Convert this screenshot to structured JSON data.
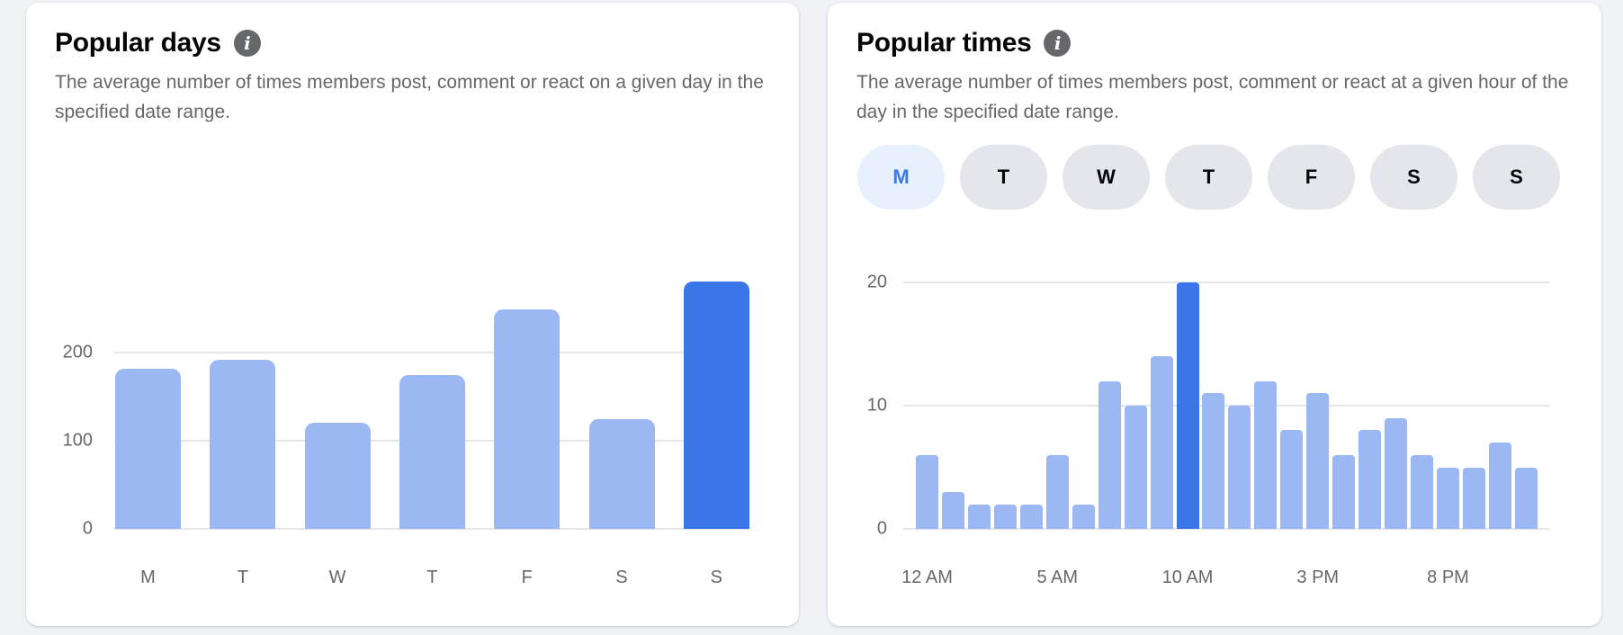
{
  "popular_days": {
    "title": "Popular days",
    "info_icon": "info-icon",
    "description": "The average number of times members post, comment or react on a given day in the specified date range."
  },
  "popular_times": {
    "title": "Popular times",
    "info_icon": "info-icon",
    "description": "The average number of times members post, comment or react at a given hour of the day in the specified date range.",
    "day_filters": [
      "M",
      "T",
      "W",
      "T",
      "F",
      "S",
      "S"
    ],
    "selected_day_index": 0
  },
  "colors": {
    "bar": "#9bb8f2",
    "highlight": "#3a76e8",
    "grid": "#e4e6eb"
  },
  "chart_data": [
    {
      "type": "bar",
      "title": "Popular days",
      "categories": [
        "M",
        "T",
        "W",
        "T",
        "F",
        "S",
        "S"
      ],
      "values": [
        182,
        192,
        120,
        174,
        249,
        125,
        281
      ],
      "highlight_index": 6,
      "yticks": [
        "0",
        "100",
        "200"
      ],
      "ylim": [
        0,
        300
      ],
      "grid": true
    },
    {
      "type": "bar",
      "title": "Popular times",
      "categories": [
        "12 AM",
        "1 AM",
        "2 AM",
        "3 AM",
        "4 AM",
        "5 AM",
        "6 AM",
        "7 AM",
        "8 AM",
        "9 AM",
        "10 AM",
        "11 AM",
        "12 PM",
        "1 PM",
        "2 PM",
        "3 PM",
        "4 PM",
        "5 PM",
        "6 PM",
        "7 PM",
        "8 PM",
        "9 PM",
        "10 PM",
        "11 PM"
      ],
      "values": [
        6,
        3,
        2,
        2,
        2,
        6,
        2,
        12,
        10,
        14,
        20,
        11,
        10,
        12,
        8,
        11,
        6,
        8,
        9,
        6,
        5,
        5,
        7,
        5
      ],
      "highlight_index": 10,
      "xtick_labels": [
        "12 AM",
        "5 AM",
        "10 AM",
        "3 PM",
        "8 PM"
      ],
      "xtick_indices": [
        0,
        5,
        10,
        15,
        20
      ],
      "yticks": [
        "0",
        "10",
        "20"
      ],
      "ylim": [
        0,
        20
      ],
      "grid": true
    }
  ]
}
